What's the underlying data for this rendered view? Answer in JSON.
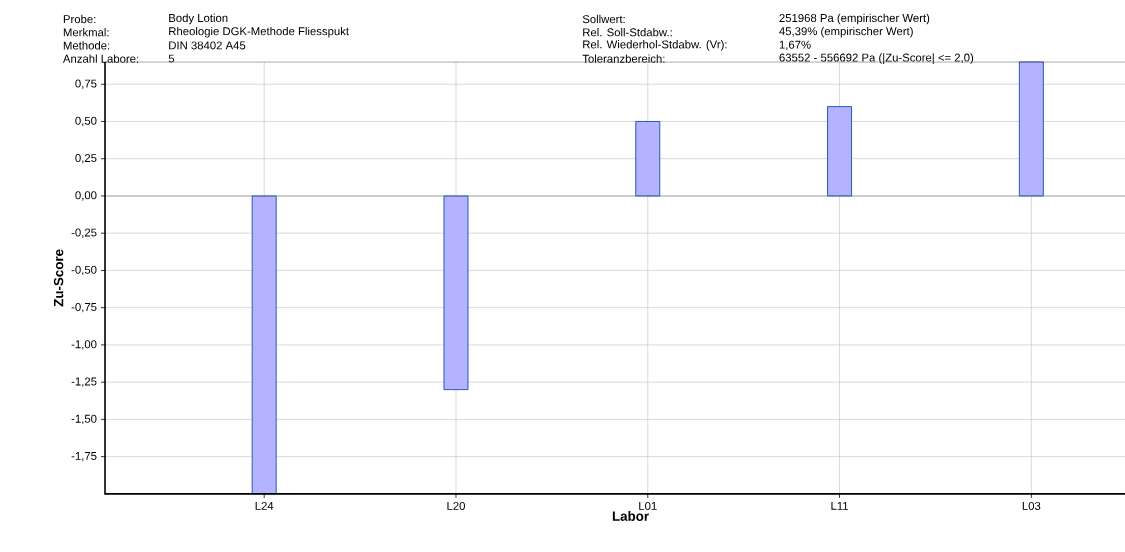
{
  "chart_data": {
    "type": "bar",
    "xlabel": "Labor",
    "ylabel": "Zu-Score",
    "categories": [
      "L24",
      "L20",
      "L01",
      "L11",
      "L03"
    ],
    "values": [
      -2.0,
      -1.3,
      0.5,
      0.6,
      0.9
    ],
    "color": "#b3b3ff",
    "ylim": [
      -2.0,
      0.9
    ],
    "yticks": [
      {
        "value": -1.75,
        "label": "-1,75"
      },
      {
        "value": -1.5,
        "label": "-1,50"
      },
      {
        "value": -1.25,
        "label": "-1,25"
      },
      {
        "value": -1.0,
        "label": "-1,00"
      },
      {
        "value": -0.75,
        "label": "-0,75"
      },
      {
        "value": -0.5,
        "label": "-0,50"
      },
      {
        "value": -0.25,
        "label": "-0,25"
      },
      {
        "value": 0,
        "label": "0,00"
      },
      {
        "value": 0.25,
        "label": "0,25"
      },
      {
        "value": 0.5,
        "label": "0,50"
      },
      {
        "value": 0.75,
        "label": "0,75"
      }
    ],
    "grid": true,
    "annotations": [
      "Probe:",
      "Body Lotion",
      "Merkmal:",
      "Rheologie DGK-Methode Fliesspukt",
      "Methode:",
      "DIN 38402 A45",
      "Anzahl Labore:",
      "5",
      "Sollwert:",
      "251968 Pa (empirischer Wert)",
      "Rel. Soll-Stdabw.:",
      "45,39% (empirischer Wert)",
      "Rel. Wiederhol-Stdabw. (Vr):",
      "1,67%",
      "Toleranzbereich:",
      "63552 - 556692 Pa (|Zu-Score| <= 2,0)"
    ]
  }
}
